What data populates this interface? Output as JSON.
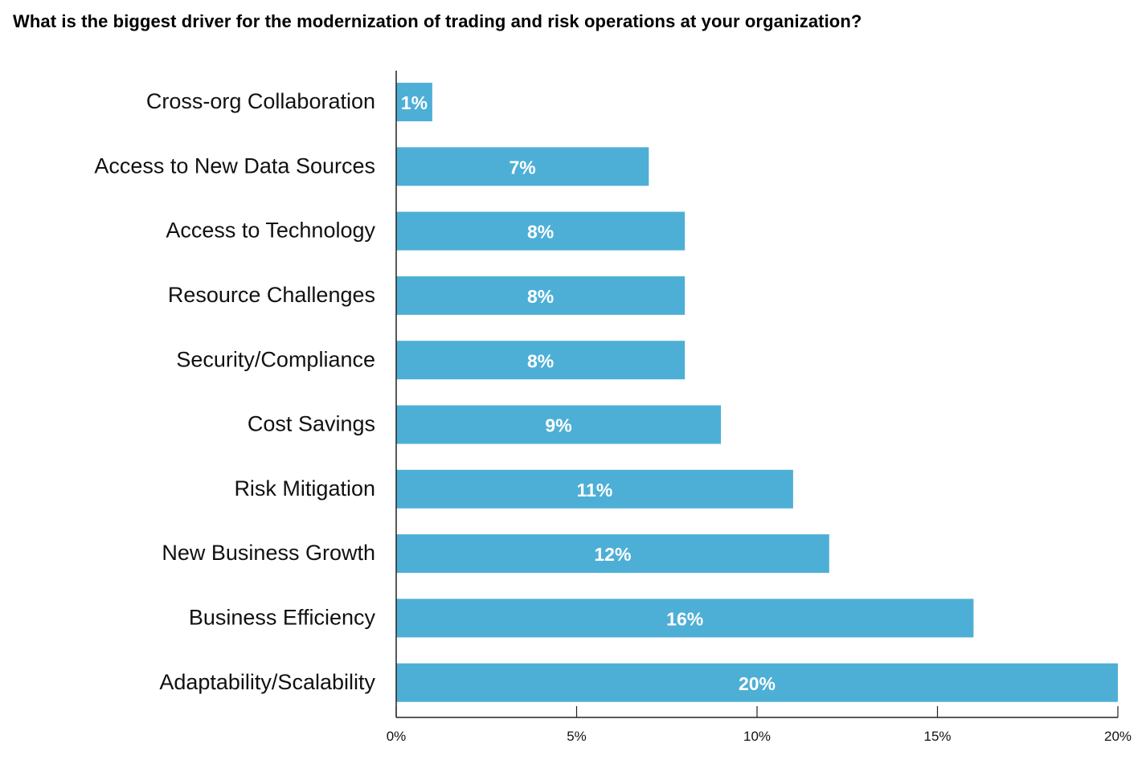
{
  "chart_data": {
    "type": "bar",
    "orientation": "horizontal",
    "title": "What is the biggest driver for the modernization of trading and risk operations at your organization?",
    "categories": [
      "Cross-org Collaboration",
      "Access to New Data Sources",
      "Access to Technology",
      "Resource Challenges",
      "Security/Compliance",
      "Cost Savings",
      "Risk Mitigation",
      "New Business Growth",
      "Business Efficiency",
      "Adaptability/Scalability"
    ],
    "values": [
      1,
      7,
      8,
      8,
      8,
      9,
      11,
      12,
      16,
      20
    ],
    "value_labels": [
      "1%",
      "7%",
      "8%",
      "8%",
      "8%",
      "9%",
      "11%",
      "12%",
      "16%",
      "20%"
    ],
    "xlabel": "",
    "ylabel": "",
    "xlim": [
      0,
      20
    ],
    "x_ticks": [
      0,
      5,
      10,
      15,
      20
    ],
    "x_tick_labels": [
      "0%",
      "5%",
      "10%",
      "15%",
      "20%"
    ],
    "grid": false,
    "legend": "none",
    "bar_color": "#4EAFD6"
  }
}
